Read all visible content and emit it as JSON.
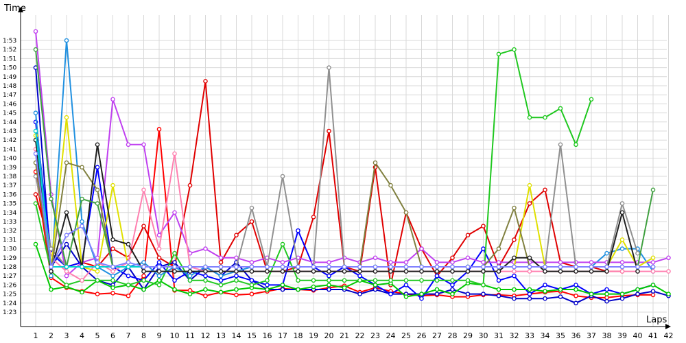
{
  "chart_data": {
    "type": "line",
    "xlabel": "Laps",
    "ylabel": "Time",
    "x": [
      1,
      2,
      3,
      4,
      5,
      6,
      7,
      8,
      9,
      10,
      11,
      12,
      13,
      14,
      15,
      16,
      17,
      18,
      19,
      20,
      21,
      22,
      23,
      24,
      25,
      26,
      27,
      28,
      29,
      30,
      31,
      32,
      33,
      34,
      35,
      36,
      37,
      38,
      39,
      40,
      41,
      42
    ],
    "x_tick_labels": [
      "1",
      "2",
      "3",
      "4",
      "5",
      "6",
      "7",
      "8",
      "9",
      "10",
      "11",
      "12",
      "13",
      "14",
      "15",
      "16",
      "17",
      "18",
      "19",
      "20",
      "21",
      "22",
      "23",
      "24",
      "25",
      "26",
      "27",
      "28",
      "29",
      "30",
      "31",
      "32",
      "33",
      "34",
      "35",
      "36",
      "37",
      "38",
      "39",
      "40",
      "41",
      "42"
    ],
    "y_tick_labels": [
      "1:23",
      "1:24",
      "1:25",
      "1:26",
      "1:27",
      "1:28",
      "1:29",
      "1:30",
      "1:31",
      "1:32",
      "1:33",
      "1:34",
      "1:35",
      "1:36",
      "1:37",
      "1:38",
      "1:39",
      "1:40",
      "1:41",
      "1:42",
      "1:43",
      "1:44",
      "1:45",
      "1:46",
      "1:47",
      "1:48",
      "1:49",
      "1:50",
      "1:51",
      "1:52",
      "1:53"
    ],
    "y_unit": "seconds",
    "ylim": [
      82,
      114
    ],
    "grid": true,
    "series": [
      {
        "color": "#ff0000",
        "values": [
          98.5,
          86.8,
          85.7,
          85.3,
          85.0,
          85.1,
          84.8,
          87.0,
          103.2,
          85.4,
          85.4,
          84.8,
          85.2,
          84.9,
          85.0,
          85.3,
          85.6,
          85.5,
          85.4,
          85.7,
          85.9,
          85.2,
          85.7,
          85.3,
          85.0,
          84.8,
          84.9,
          84.7,
          84.7,
          84.9,
          84.9,
          84.8,
          85.0,
          85.2,
          85.3,
          84.8,
          84.6,
          84.6,
          84.8,
          84.9,
          84.9,
          null
        ]
      },
      {
        "color": "#e00000",
        "values": [
          96.0,
          90.0,
          88.0,
          88.5,
          88.0,
          90.0,
          89.0,
          92.5,
          89.0,
          88.0,
          97.0,
          108.5,
          88.5,
          91.5,
          93.0,
          87.5,
          87.5,
          88.0,
          93.5,
          103.0,
          88.0,
          87.5,
          99.0,
          86.0,
          94.0,
          90.0,
          87.0,
          89.0,
          91.5,
          92.5,
          88.0,
          91.0,
          95.0,
          96.5,
          88.5,
          88.0,
          88.0,
          87.5,
          87.5,
          null,
          null,
          null
        ]
      },
      {
        "color": "#0000c8",
        "values": [
          110.0,
          88.0,
          90.5,
          88.0,
          86.5,
          86.0,
          88.0,
          85.5,
          88.0,
          88.5,
          86.5,
          88.0,
          87.0,
          88.5,
          86.5,
          85.5,
          85.5,
          85.5,
          85.5,
          85.5,
          85.5,
          85.0,
          85.5,
          85.0,
          85.0,
          85.0,
          85.0,
          85.5,
          85.0,
          85.0,
          84.8,
          84.5,
          84.5,
          84.5,
          84.7,
          84.0,
          84.8,
          84.2,
          84.5,
          85.0,
          85.3,
          84.8
        ]
      },
      {
        "color": "#0000ff",
        "values": [
          104.0,
          89.5,
          88.0,
          88.5,
          99.0,
          88.0,
          87.0,
          86.5,
          88.5,
          86.5,
          87.5,
          87.0,
          86.5,
          87.0,
          86.5,
          86.0,
          86.0,
          92.0,
          88.0,
          87.0,
          88.0,
          87.0,
          86.0,
          85.0,
          86.0,
          84.5,
          87.0,
          86.0,
          87.5,
          90.0,
          86.5,
          87.0,
          85.0,
          86.0,
          85.5,
          86.0,
          85.0,
          85.5,
          85.0,
          85.5,
          86.0,
          null
        ]
      },
      {
        "color": "#00c800",
        "values": [
          90.5,
          85.5,
          85.8,
          85.2,
          86.5,
          85.7,
          86.0,
          85.5,
          86.5,
          85.5,
          85.0,
          85.5,
          85.2,
          85.5,
          85.7,
          85.5,
          86.0,
          85.5,
          85.8,
          86.0,
          85.7,
          86.5,
          86.0,
          86.2,
          84.7,
          85.0,
          85.5,
          85.0,
          86.2,
          86.0,
          85.5,
          85.5,
          85.5,
          85.3,
          85.5,
          85.5,
          85.0,
          85.0,
          85.0,
          85.5,
          86.0,
          85.0
        ]
      },
      {
        "color": "#20c820",
        "values": [
          95.0,
          87.5,
          86.0,
          86.5,
          86.5,
          86.5,
          86.0,
          86.5,
          86.0,
          89.5,
          86.5,
          86.5,
          86.0,
          86.5,
          86.0,
          86.5,
          90.5,
          86.5,
          86.5,
          86.5,
          86.5,
          86.5,
          86.5,
          86.5,
          86.5,
          86.5,
          86.5,
          86.5,
          86.5,
          86.0,
          111.5,
          112.0,
          104.5,
          104.5,
          105.5,
          101.5,
          106.5,
          null,
          null,
          null,
          null,
          null
        ]
      },
      {
        "color": "#2090e0",
        "values": [
          105.0,
          87.0,
          113.0,
          93.0,
          88.0,
          87.0,
          88.0,
          88.5,
          87.0,
          88.0,
          87.0,
          88.0,
          87.0,
          87.5,
          88.0,
          88.0,
          88.0,
          88.0,
          88.0,
          88.0,
          88.0,
          88.0,
          88.0,
          88.0,
          88.0,
          88.0,
          88.0,
          88.0,
          88.0,
          88.0,
          88.0,
          88.0,
          88.0,
          88.0,
          88.0,
          88.0,
          88.0,
          89.5,
          90.0,
          90.0,
          87.5,
          null
        ]
      },
      {
        "color": "#c040f0",
        "values": [
          114.0,
          96.0,
          87.0,
          88.5,
          89.0,
          106.5,
          101.5,
          101.5,
          91.5,
          94.0,
          89.5,
          90.0,
          89.0,
          89.0,
          88.5,
          89.0,
          88.5,
          89.0,
          88.5,
          88.5,
          89.0,
          88.5,
          89.0,
          88.5,
          88.5,
          90.0,
          88.5,
          88.5,
          89.0,
          88.5,
          88.5,
          88.5,
          88.5,
          88.5,
          88.5,
          88.5,
          88.5,
          88.5,
          88.5,
          88.5,
          88.5,
          89.0
        ]
      },
      {
        "color": "#ff80b0",
        "values": [
          101.0,
          89.0,
          87.5,
          86.5,
          88.5,
          87.5,
          88.5,
          96.5,
          90.0,
          100.5,
          88.0,
          87.5,
          87.5,
          87.5,
          87.5,
          87.5,
          87.5,
          87.5,
          87.5,
          87.5,
          87.5,
          87.5,
          87.5,
          87.5,
          87.5,
          87.5,
          87.5,
          87.5,
          87.5,
          87.5,
          87.5,
          87.5,
          87.5,
          87.5,
          87.5,
          87.5,
          87.5,
          87.5,
          87.5,
          87.5,
          87.5,
          87.5
        ]
      },
      {
        "color": "#e0e000",
        "values": [
          102.5,
          88.0,
          104.5,
          88.0,
          87.5,
          97.0,
          88.0,
          88.0,
          88.0,
          88.0,
          88.0,
          88.0,
          88.0,
          88.0,
          88.0,
          88.0,
          88.0,
          88.0,
          88.0,
          88.0,
          88.0,
          88.0,
          88.0,
          88.0,
          88.0,
          88.0,
          88.0,
          88.0,
          88.0,
          88.0,
          88.0,
          88.0,
          97.0,
          88.0,
          88.0,
          88.0,
          88.0,
          88.0,
          91.0,
          88.0,
          89.0,
          null
        ]
      },
      {
        "color": "#909090",
        "values": [
          98.0,
          90.0,
          88.0,
          88.0,
          88.0,
          88.0,
          88.0,
          88.0,
          88.0,
          88.0,
          88.0,
          88.0,
          88.0,
          88.0,
          94.5,
          88.0,
          98.0,
          88.0,
          88.0,
          110.0,
          88.0,
          88.0,
          88.0,
          88.0,
          88.0,
          88.0,
          88.0,
          88.0,
          88.0,
          88.0,
          88.0,
          88.0,
          88.0,
          88.0,
          101.5,
          88.0,
          88.0,
          88.0,
          95.0,
          89.5,
          null,
          null
        ]
      },
      {
        "color": "#808040",
        "values": [
          99.5,
          87.5,
          99.5,
          99.0,
          96.5,
          88.0,
          88.0,
          88.0,
          88.0,
          88.0,
          88.0,
          88.0,
          88.0,
          88.0,
          88.0,
          88.0,
          88.0,
          88.0,
          88.0,
          88.0,
          88.0,
          88.0,
          99.5,
          97.0,
          94.0,
          88.0,
          88.0,
          88.0,
          88.0,
          88.0,
          90.0,
          94.5,
          88.0,
          88.0,
          88.0,
          88.0,
          88.0,
          88.0,
          88.0,
          88.0,
          88.0,
          null
        ]
      },
      {
        "color": "#202020",
        "values": [
          102.0,
          87.5,
          94.0,
          88.0,
          101.5,
          91.0,
          90.5,
          87.5,
          87.5,
          87.5,
          87.5,
          87.5,
          87.5,
          87.5,
          87.5,
          87.5,
          87.5,
          87.5,
          87.5,
          87.5,
          87.5,
          87.5,
          87.5,
          87.5,
          87.5,
          87.5,
          87.5,
          87.5,
          87.5,
          87.5,
          87.5,
          89.0,
          89.0,
          87.5,
          87.5,
          87.5,
          87.5,
          87.5,
          94.0,
          87.5,
          null,
          null
        ]
      },
      {
        "color": "#40a040",
        "values": [
          112.0,
          95.5,
          88.0,
          95.5,
          95.0,
          88.0,
          88.0,
          88.0,
          88.0,
          88.0,
          88.0,
          88.0,
          88.0,
          88.0,
          88.0,
          88.0,
          88.0,
          88.0,
          88.0,
          88.0,
          88.0,
          88.0,
          88.0,
          88.0,
          88.0,
          88.0,
          88.0,
          88.0,
          88.0,
          88.0,
          88.0,
          88.0,
          88.0,
          88.0,
          88.0,
          88.0,
          88.0,
          88.0,
          88.0,
          88.0,
          96.5,
          null
        ]
      },
      {
        "color": "#00d0d0",
        "values": [
          103.0,
          88.0,
          88.0,
          88.0,
          88.0,
          88.0,
          88.0,
          88.0,
          88.0,
          88.0,
          88.0,
          88.0,
          88.0,
          88.0,
          88.0,
          88.0,
          88.0,
          88.0,
          88.0,
          88.0,
          88.0,
          88.0,
          88.0,
          88.0,
          88.0,
          88.0,
          88.0,
          88.0,
          88.0,
          88.0,
          88.0,
          88.0,
          88.0,
          88.0,
          88.0,
          88.0,
          88.0,
          88.0,
          88.0,
          88.0,
          88.0,
          null
        ]
      },
      {
        "color": "#8080ff",
        "values": [
          100.5,
          88.0,
          91.5,
          92.5,
          88.5,
          88.0,
          88.5,
          88.0,
          88.0,
          88.0,
          88.0,
          88.0,
          88.0,
          88.0,
          88.0,
          88.0,
          88.0,
          88.0,
          88.0,
          88.0,
          88.0,
          88.0,
          88.0,
          88.0,
          88.0,
          88.0,
          88.0,
          88.0,
          88.0,
          88.0,
          88.0,
          88.0,
          88.0,
          88.0,
          88.0,
          88.0,
          88.0,
          88.0,
          88.0,
          88.0,
          88.0,
          null
        ]
      }
    ]
  }
}
